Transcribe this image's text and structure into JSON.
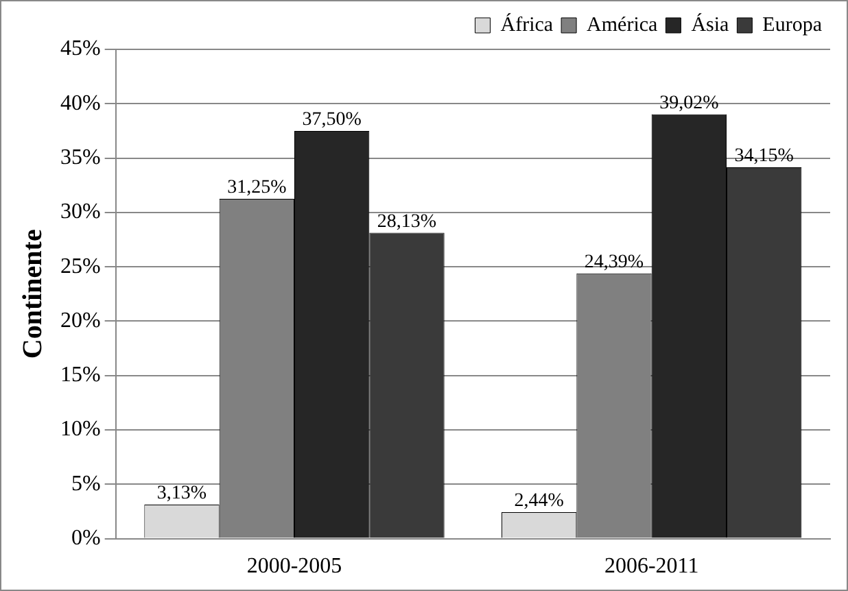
{
  "chart_data": {
    "type": "bar",
    "ylabel": "Continente",
    "categories": [
      "2000-2005",
      "2006-2011"
    ],
    "series": [
      {
        "name": "África",
        "color": "#d9d9d9",
        "values": [
          3.13,
          2.44
        ],
        "value_labels": [
          "3,13%",
          "2,44%"
        ]
      },
      {
        "name": "América",
        "color": "#808080",
        "values": [
          31.25,
          24.39
        ],
        "value_labels": [
          "31,25%",
          "24,39%"
        ]
      },
      {
        "name": "Ásia",
        "color": "#262626",
        "values": [
          37.5,
          39.02
        ],
        "value_labels": [
          "37,50%",
          "39,02%"
        ]
      },
      {
        "name": "Europa",
        "color": "#3a3a3a",
        "values": [
          28.13,
          34.15
        ],
        "value_labels": [
          "28,13%",
          "34,15%"
        ]
      }
    ],
    "ylim": [
      0,
      45
    ],
    "yticks": [
      {
        "value": 0,
        "label": "0%"
      },
      {
        "value": 5,
        "label": "5%"
      },
      {
        "value": 10,
        "label": "10%"
      },
      {
        "value": 15,
        "label": "15%"
      },
      {
        "value": 20,
        "label": "20%"
      },
      {
        "value": 25,
        "label": "25%"
      },
      {
        "value": 30,
        "label": "30%"
      },
      {
        "value": 35,
        "label": "35%"
      },
      {
        "value": 40,
        "label": "40%"
      },
      {
        "value": 45,
        "label": "45%"
      }
    ],
    "grid": "y",
    "legend": "top right"
  }
}
